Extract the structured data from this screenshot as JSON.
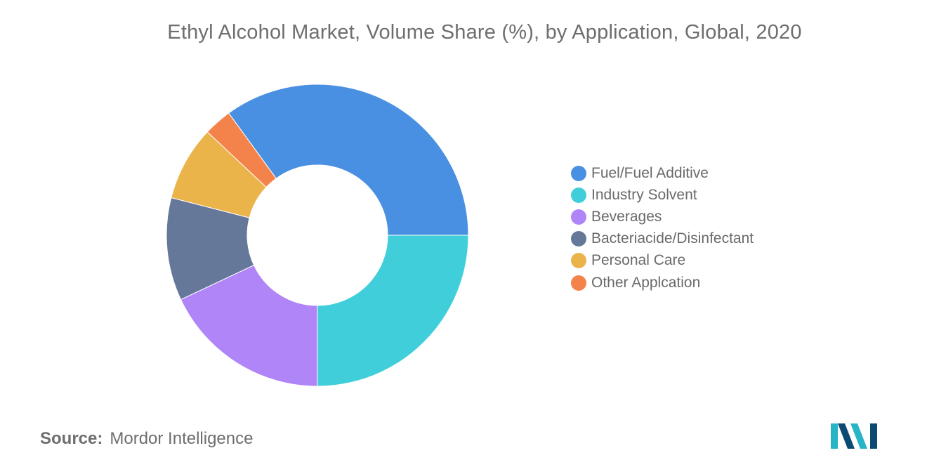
{
  "chart_data": {
    "type": "pie",
    "donut": true,
    "title": "Ethyl Alcohol Market, Volume Share (%), by Application, Global, 2020",
    "categories": [
      "Fuel/Fuel Additive",
      "Industry Solvent",
      "Beverages",
      "Bacteriacide/Disinfectant",
      "Personal Care",
      "Other Applcation"
    ],
    "values": [
      35,
      25,
      18,
      11,
      8,
      3
    ],
    "colors": [
      "#4a90e2",
      "#40cfda",
      "#b085f8",
      "#667899",
      "#ebb44b",
      "#f3834b"
    ],
    "legend_position": "right"
  },
  "source": {
    "label": "Source:",
    "text": "Mordor Intelligence"
  },
  "logo": {
    "icon": "mordor-intelligence-logo",
    "colors": [
      "#0b4a72",
      "#27b4c6"
    ]
  }
}
